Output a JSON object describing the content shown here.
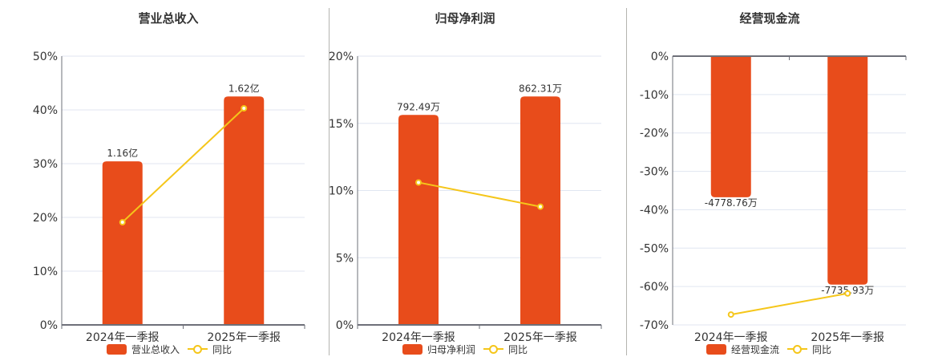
{
  "colors": {
    "bar": "#E84C1B",
    "line": "#F5C61A",
    "axis": "#6E7079",
    "grid": "#E0E6F1",
    "text": "#333333"
  },
  "chart_data": [
    {
      "type": "bar",
      "title": "营业总收入",
      "categories": [
        "2024年一季报",
        "2025年一季报"
      ],
      "series": [
        {
          "name": "营业总收入",
          "type": "bar",
          "values": [
            1.16,
            1.62
          ],
          "unit": "亿",
          "labels": [
            "1.16亿",
            "1.62亿"
          ]
        },
        {
          "name": "同比",
          "type": "line",
          "values": [
            19.1,
            40.3
          ],
          "unit": "%"
        }
      ],
      "yaxis": {
        "range": [
          0,
          50
        ],
        "tick_values": [
          0,
          10,
          20,
          30,
          40,
          50
        ],
        "ticks": [
          "0%",
          "10%",
          "20%",
          "30%",
          "40%",
          "50%"
        ]
      },
      "xlabel": "",
      "ylabel": "",
      "grid": true,
      "legend_position": "bottom",
      "legend": {
        "bar_label": "营业总收入",
        "line_label": "同比"
      }
    },
    {
      "type": "bar",
      "title": "归母净利润",
      "categories": [
        "2024年一季报",
        "2025年一季报"
      ],
      "series": [
        {
          "name": "归母净利润",
          "type": "bar",
          "values": [
            792.49,
            862.31
          ],
          "unit": "万",
          "labels": [
            "792.49万",
            "862.31万"
          ]
        },
        {
          "name": "同比",
          "type": "line",
          "values": [
            10.6,
            8.8
          ],
          "unit": "%"
        }
      ],
      "yaxis": {
        "range": [
          0,
          20
        ],
        "tick_values": [
          0,
          5,
          10,
          15,
          20
        ],
        "ticks": [
          "0%",
          "5%",
          "10%",
          "15%",
          "20%"
        ]
      },
      "xlabel": "",
      "ylabel": "",
      "grid": true,
      "legend_position": "bottom",
      "legend": {
        "bar_label": "归母净利润",
        "line_label": "同比"
      }
    },
    {
      "type": "bar",
      "title": "经营现金流",
      "categories": [
        "2024年一季报",
        "2025年一季报"
      ],
      "series": [
        {
          "name": "经营现金流",
          "type": "bar",
          "values": [
            -4778.76,
            -7735.93
          ],
          "unit": "万",
          "labels": [
            "-4778.76万",
            "-7735.93万"
          ]
        },
        {
          "name": "同比",
          "type": "line",
          "values": [
            -67.3,
            -61.8
          ],
          "unit": "%"
        }
      ],
      "yaxis": {
        "range": [
          -70,
          0
        ],
        "tick_values": [
          0,
          -10,
          -20,
          -30,
          -40,
          -50,
          -60,
          -70
        ],
        "ticks": [
          "0%",
          "-10%",
          "-20%",
          "-30%",
          "-40%",
          "-50%",
          "-60%",
          "-70%"
        ]
      },
      "xlabel": "",
      "ylabel": "",
      "grid": true,
      "legend_position": "bottom",
      "legend": {
        "bar_label": "经营现金流",
        "line_label": "同比"
      }
    }
  ]
}
